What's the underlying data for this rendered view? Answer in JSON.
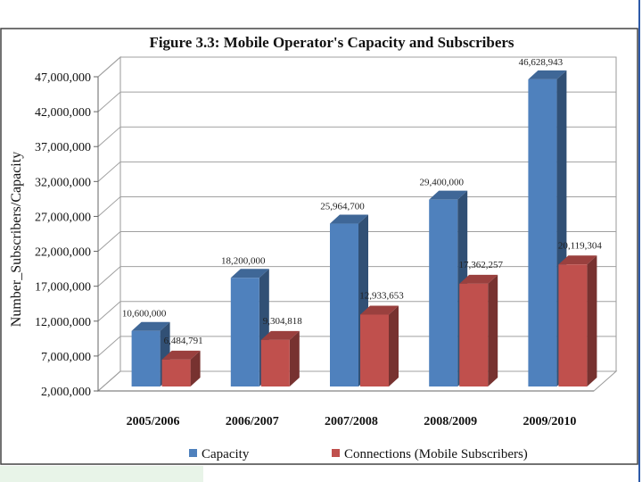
{
  "chart_data": {
    "type": "bar",
    "title": "Figure 3.3: Mobile Operator's Capacity and Subscribers",
    "ylabel": "Number_Subscribers/Capacity",
    "xlabel": "",
    "categories": [
      "2005/2006",
      "2006/2007",
      "2007/2008",
      "2008/2009",
      "2009/2010"
    ],
    "series": [
      {
        "name": "Capacity",
        "color": "#4f81bd",
        "values": [
          10600000,
          18200000,
          25964700,
          29400000,
          46628943
        ],
        "labels": [
          "10,600,000",
          "18,200,000",
          "25,964,700",
          "29,400,000",
          "46,628,943"
        ]
      },
      {
        "name": "Connections (Mobile Subscribers)",
        "color": "#c0504d",
        "values": [
          6484791,
          9304818,
          12933653,
          17362257,
          20119304
        ],
        "labels": [
          "6,484,791",
          "9,304,818",
          "12,933,653",
          "17,362,257",
          "20,119,304"
        ]
      }
    ],
    "ylim": [
      2000000,
      47000000
    ],
    "yticks": [
      2000000,
      7000000,
      12000000,
      17000000,
      22000000,
      27000000,
      32000000,
      37000000,
      42000000,
      47000000
    ],
    "ytick_labels": [
      "2,000,000",
      "7,000,000",
      "12,000,000",
      "17,000,000",
      "22,000,000",
      "27,000,000",
      "32,000,000",
      "37,000,000",
      "42,000,000",
      "47,000,000"
    ],
    "grid": true,
    "legend": "bottom"
  }
}
